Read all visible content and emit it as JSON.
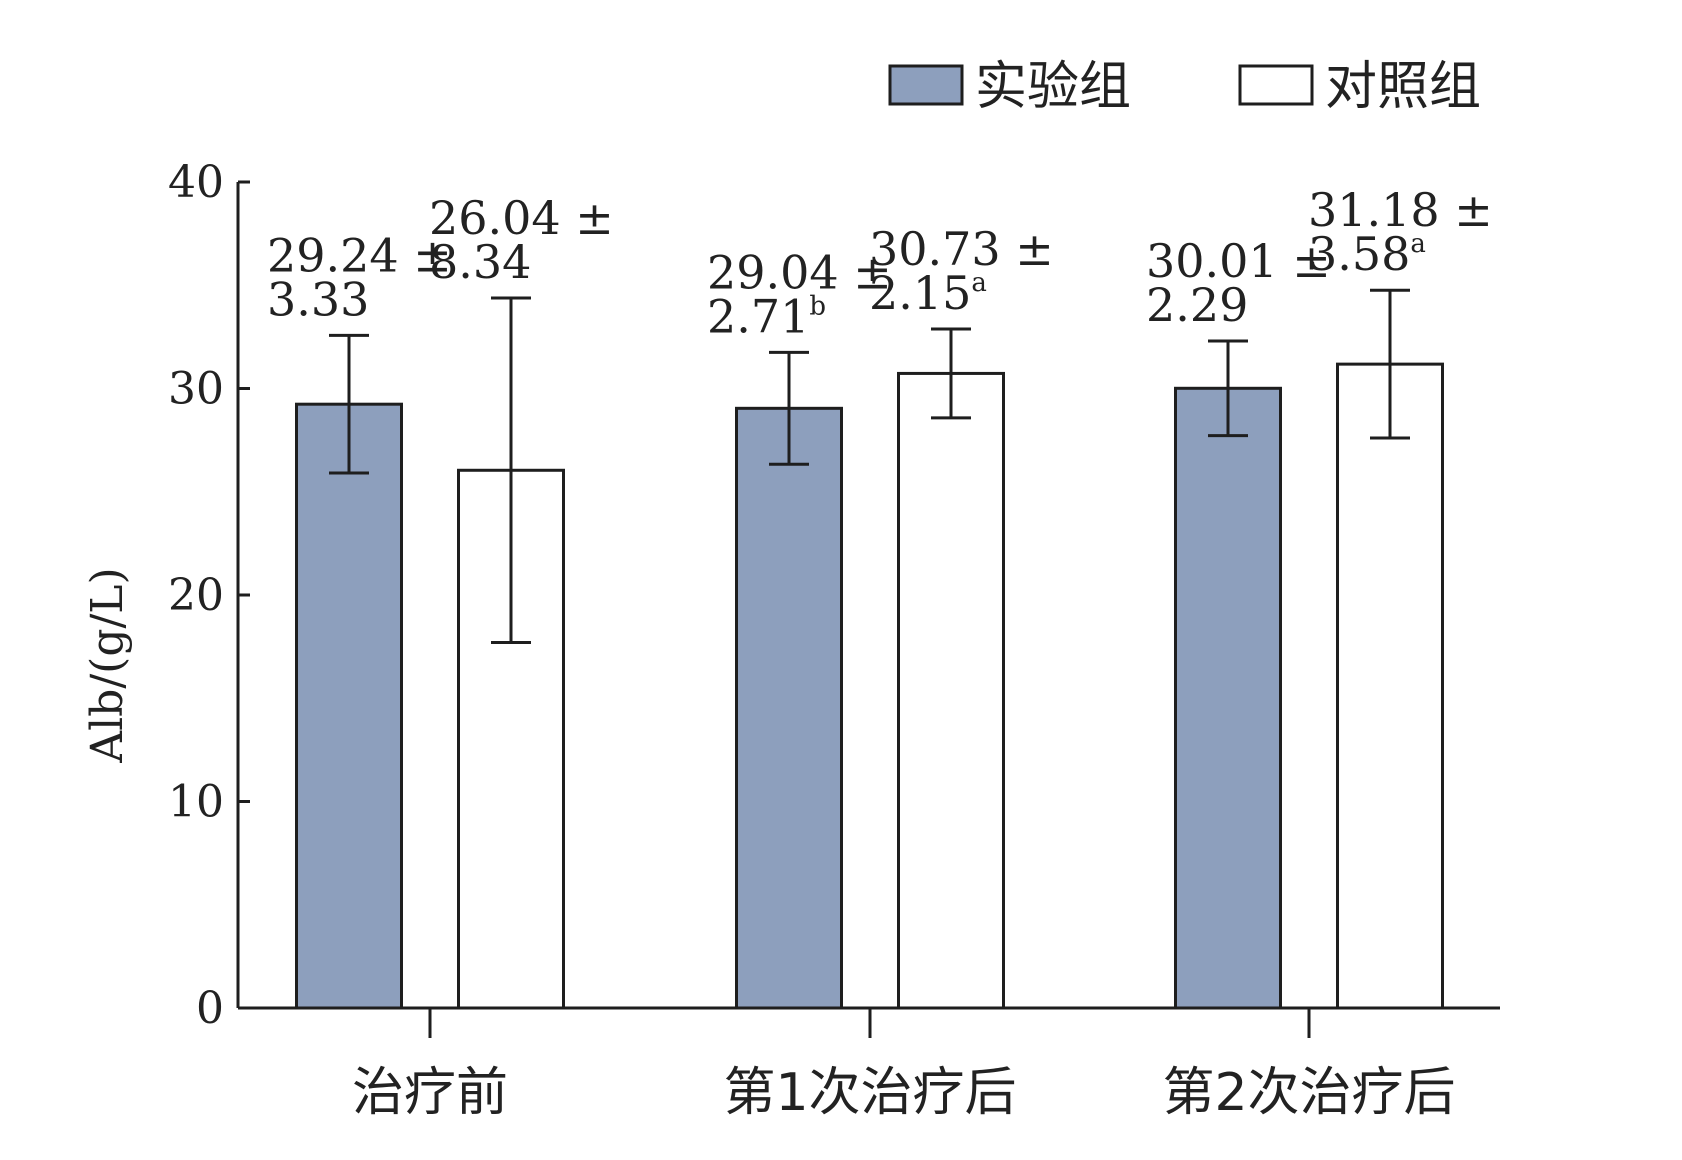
{
  "chart_data": {
    "type": "bar",
    "ylabel": "Alb/(g/L)",
    "ylim": [
      0,
      40
    ],
    "yticks": [
      "0",
      "10",
      "20",
      "30",
      "40"
    ],
    "categories": [
      "治疗前",
      "第1次治疗后",
      "第2次治疗后"
    ],
    "legend_position": "top-right",
    "grid": false,
    "series": [
      {
        "name": "实验组",
        "color": "#8d9fbd",
        "values": [
          29.24,
          29.04,
          30.01
        ],
        "errors": [
          3.33,
          2.71,
          2.29
        ],
        "labels": [
          {
            "line1": "29.24 ±",
            "line2": "3.33",
            "sup": ""
          },
          {
            "line1": "29.04 ±",
            "line2": "2.71",
            "sup": "b"
          },
          {
            "line1": "30.01 ±",
            "line2": "2.29",
            "sup": ""
          }
        ]
      },
      {
        "name": "对照组",
        "color": "#ffffff",
        "values": [
          26.04,
          30.73,
          31.18
        ],
        "errors": [
          8.34,
          2.15,
          3.58
        ],
        "labels": [
          {
            "line1": "26.04 ±",
            "line2": "8.34",
            "sup": ""
          },
          {
            "line1": "30.73 ±",
            "line2": "2.15",
            "sup": "a"
          },
          {
            "line1": "31.18 ±",
            "line2": "3.58",
            "sup": "a"
          }
        ]
      }
    ]
  }
}
